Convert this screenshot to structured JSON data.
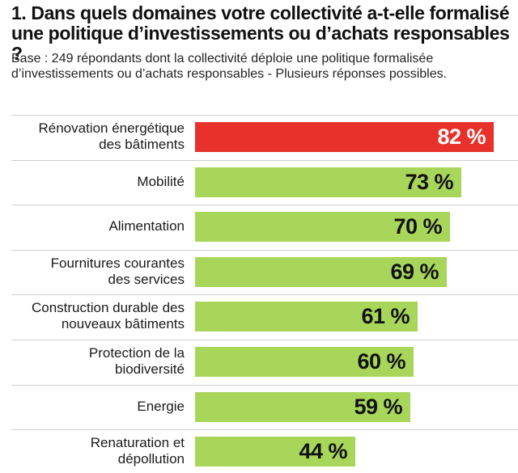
{
  "colors": {
    "highlight": "#e8312a",
    "bar": "#a8d65a",
    "value_on_highlight": "#ffffff",
    "value": "#111111"
  },
  "chart_data": {
    "type": "bar",
    "orientation": "horizontal",
    "title": "1. Dans quels domaines votre collectivité a-t-elle formalisé une politique d’investissements ou d’achats responsables ?",
    "subtitle": "Base : 249 répondants dont la collectivité déploie une politique formalisée d’investissements ou d’achats responsables - Plusieurs réponses possibles.",
    "unit": "%",
    "categories": [
      "Rénovation énergétique des bâtiments",
      "Mobilité",
      "Alimentation",
      "Fournitures courantes des services",
      "Construction durable des nouveaux bâtiments",
      "Protection de la biodiversité",
      "Energie",
      "Renaturation et dépollution"
    ],
    "labels": [
      [
        "Rénovation énergétique",
        "des bâtiments"
      ],
      [
        "Mobilité"
      ],
      [
        "Alimentation"
      ],
      [
        "Fournitures courantes",
        "des services"
      ],
      [
        "Construction durable des",
        "nouveaux bâtiments"
      ],
      [
        "Protection de la",
        "biodiversité"
      ],
      [
        "Energie"
      ],
      [
        "Renaturation et",
        "dépollution"
      ]
    ],
    "values": [
      82,
      73,
      70,
      69,
      61,
      60,
      59,
      44
    ],
    "value_labels": [
      "82 %",
      "73 %",
      "70 %",
      "69 %",
      "61 %",
      "60 %",
      "59 %",
      "44 %"
    ],
    "highlight_index": 0,
    "xlim": [
      0,
      100
    ],
    "grid": false,
    "legend": "none"
  }
}
